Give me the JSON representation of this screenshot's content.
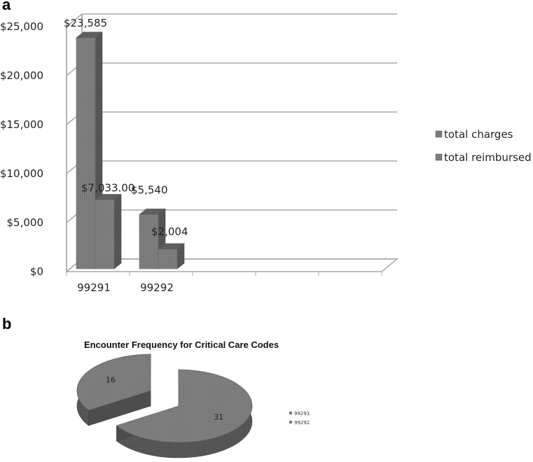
{
  "chart_data": [
    {
      "panel": "a",
      "type": "bar",
      "categories": [
        "99291",
        "99292"
      ],
      "series": [
        {
          "name": "total charges",
          "values": [
            23585,
            5540
          ],
          "labels": [
            "$23,585",
            "$5,540"
          ],
          "color": "#7a7a7a"
        },
        {
          "name": "total reimbursed",
          "values": [
            7033,
            2004
          ],
          "labels": [
            "$7,033.00",
            "$2,004"
          ],
          "color": "#6a6a6a"
        }
      ],
      "y_ticks": [
        "$0",
        "$5,000",
        "$10,000",
        "$15,000",
        "$20,000",
        "$25,000"
      ],
      "ylim": [
        0,
        25000
      ],
      "grid": true,
      "legend": "right",
      "style": "3d"
    },
    {
      "panel": "b",
      "type": "pie",
      "title": "Encounter Frequency for Critical Care Codes",
      "categories": [
        "99291",
        "99292"
      ],
      "values": [
        31,
        16
      ],
      "labels": [
        "31",
        "16"
      ],
      "legend": "right",
      "style": "3d-exploded"
    }
  ]
}
